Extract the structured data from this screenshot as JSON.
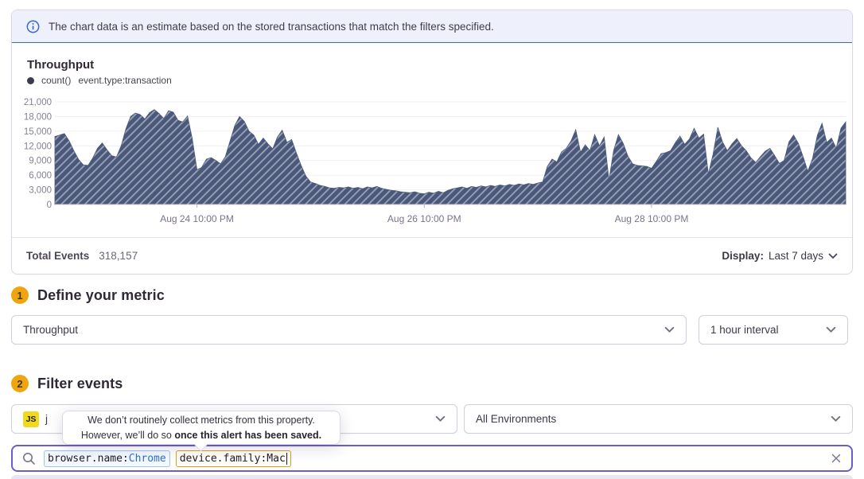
{
  "banner": {
    "text": "The chart data is an estimate based on the stored transactions that match the filters specified."
  },
  "chart": {
    "title": "Throughput",
    "legend": {
      "series_label": "count()",
      "filter_label": "event.type:transaction"
    },
    "footer": {
      "total_label": "Total Events",
      "total_value": "318,157",
      "display_label": "Display:",
      "display_value": "Last 7 days"
    }
  },
  "chart_data": {
    "type": "area",
    "title": "Throughput",
    "series_name": "count() event.type:transaction",
    "interval": "1 hour",
    "period": "Last 7 days",
    "ylim": [
      0,
      21000
    ],
    "y_ticks": [
      0,
      3000,
      6000,
      9000,
      12000,
      15000,
      18000,
      21000
    ],
    "x_ticks": [
      {
        "index": 30,
        "label": "Aug 24 10:00 PM"
      },
      {
        "index": 78,
        "label": "Aug 26 10:00 PM"
      },
      {
        "index": 126,
        "label": "Aug 28 10:00 PM"
      }
    ],
    "grid": true,
    "legend_position": "top-left",
    "colors": {
      "area": "#4a587b",
      "hatch": "#9aa2b5",
      "axis_label": "#857f93",
      "grid": "#f0edf3",
      "axis_line": "#cfc7d8",
      "tick": "#b9b0c5",
      "x_label": "#7b7289"
    },
    "values": [
      13900,
      14200,
      14500,
      13000,
      11000,
      9200,
      8100,
      8000,
      9500,
      11500,
      12600,
      11200,
      10000,
      9700,
      12000,
      15500,
      18000,
      18700,
      18400,
      17500,
      18800,
      19400,
      18600,
      17600,
      19200,
      18900,
      17200,
      16900,
      18100,
      13500,
      7100,
      7600,
      9300,
      9600,
      9000,
      8300,
      9800,
      13000,
      16200,
      18000,
      17000,
      15000,
      14200,
      12300,
      13600,
      12400,
      11400,
      13800,
      15200,
      12700,
      13300,
      10500,
      8000,
      5800,
      4600,
      4300,
      3900,
      3700,
      3400,
      3300,
      3500,
      3400,
      3600,
      3300,
      3500,
      3200,
      3600,
      3400,
      3700,
      3300,
      3100,
      2900,
      2800,
      2600,
      2500,
      2400,
      2600,
      2300,
      2200,
      2500,
      2300,
      2700,
      2400,
      2900,
      3200,
      3400,
      3600,
      3300,
      3700,
      3500,
      3800,
      3600,
      3900,
      3700,
      4000,
      3800,
      4100,
      3900,
      4200,
      4000,
      4300,
      4100,
      4400,
      4600,
      7800,
      9300,
      8700,
      10800,
      11500,
      13000,
      15300,
      10700,
      12200,
      11000,
      14300,
      12000,
      13800,
      5000,
      11000,
      14300,
      12500,
      9900,
      8300,
      8000,
      7900,
      7800,
      7400,
      8800,
      10400,
      10600,
      11000,
      12600,
      14000,
      12300,
      13400,
      15600,
      13600,
      14400,
      6200,
      10300,
      15800,
      12800,
      11000,
      12400,
      13500,
      12000,
      11000,
      9500,
      8600,
      9800,
      10900,
      11500,
      10000,
      8400,
      9000,
      12800,
      14200,
      12500,
      9800,
      6800,
      9400,
      14100,
      16600,
      12700,
      13600,
      11500,
      15600,
      16900
    ]
  },
  "steps": {
    "step1": {
      "number": "1",
      "title": "Define your metric"
    },
    "step2": {
      "number": "2",
      "title": "Filter events"
    }
  },
  "selects": {
    "metric": "Throughput",
    "interval": "1 hour interval",
    "project": {
      "badge": "JS",
      "name": "j"
    },
    "environment": "All Environments"
  },
  "tooltip": {
    "line1": "We don’t routinely collect metrics from this property.",
    "line2_prefix": "However, we’ll do so ",
    "line2_bold": "once this alert has been saved."
  },
  "search": {
    "tokens": [
      {
        "key": "browser.name:",
        "value": "Chrome"
      },
      {
        "key": "device.family:",
        "value": "Mac"
      }
    ]
  }
}
